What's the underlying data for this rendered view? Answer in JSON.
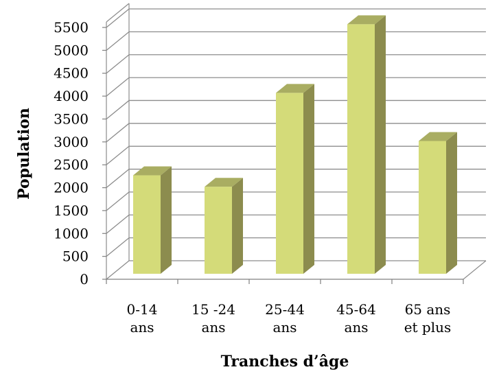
{
  "chart_data": {
    "type": "bar",
    "style": "3d-column",
    "title": "",
    "xlabel": "Tranches d’âge",
    "ylabel": "Population",
    "categories": [
      [
        "0-14",
        "ans"
      ],
      [
        "15 -24",
        "ans"
      ],
      [
        "25-44",
        "ans"
      ],
      [
        "45-64",
        "ans"
      ],
      [
        "65 ans",
        "et plus"
      ]
    ],
    "values": [
      2150,
      1900,
      3950,
      5450,
      2900
    ],
    "ylim": [
      0,
      5500
    ],
    "yticks": [
      0,
      500,
      1000,
      1500,
      2000,
      2500,
      3000,
      3500,
      4000,
      4500,
      5000,
      5500
    ],
    "grid": true,
    "legend": "none",
    "colors": {
      "bar_front": "#d4db79",
      "bar_side": "#8c8c4e",
      "bar_top": "#a9ad62",
      "grid": "#8c8c8c",
      "axis": "#7f7f7f"
    }
  }
}
